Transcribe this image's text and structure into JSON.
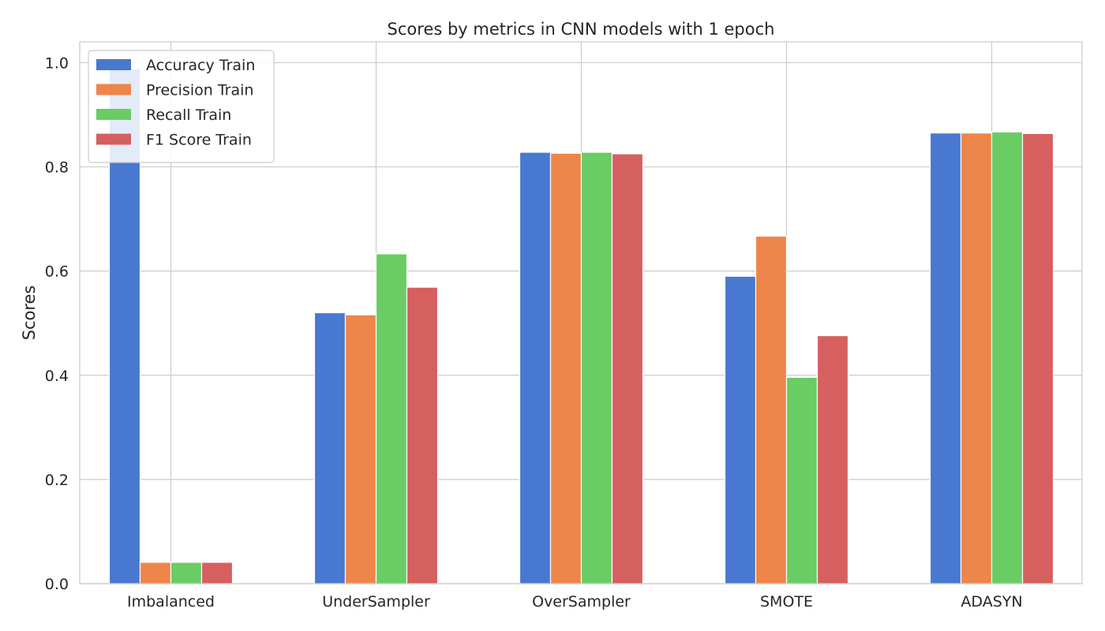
{
  "chart_data": {
    "type": "bar",
    "title": "Scores by metrics in CNN models with 1 epoch",
    "xlabel": "",
    "ylabel": "Scores",
    "ylim": [
      0,
      1.04
    ],
    "yticks": [
      "0.0",
      "0.2",
      "0.4",
      "0.6",
      "0.8",
      "1.0"
    ],
    "grid": true,
    "legend_position": "top-left",
    "categories": [
      "Imbalanced",
      "UnderSampler",
      "OverSampler",
      "SMOTE",
      "ADASYN"
    ],
    "series": [
      {
        "name": "Accuracy Train",
        "color": "#4878d0",
        "values": [
          0.988,
          0.52,
          0.828,
          0.59,
          0.865
        ]
      },
      {
        "name": "Precision Train",
        "color": "#ee854a",
        "values": [
          0.041,
          0.516,
          0.826,
          0.667,
          0.865
        ]
      },
      {
        "name": "Recall Train",
        "color": "#6acc64",
        "values": [
          0.041,
          0.633,
          0.828,
          0.396,
          0.867
        ]
      },
      {
        "name": "F1 Score Train",
        "color": "#d65f5f",
        "values": [
          0.041,
          0.569,
          0.825,
          0.476,
          0.864
        ]
      }
    ]
  }
}
